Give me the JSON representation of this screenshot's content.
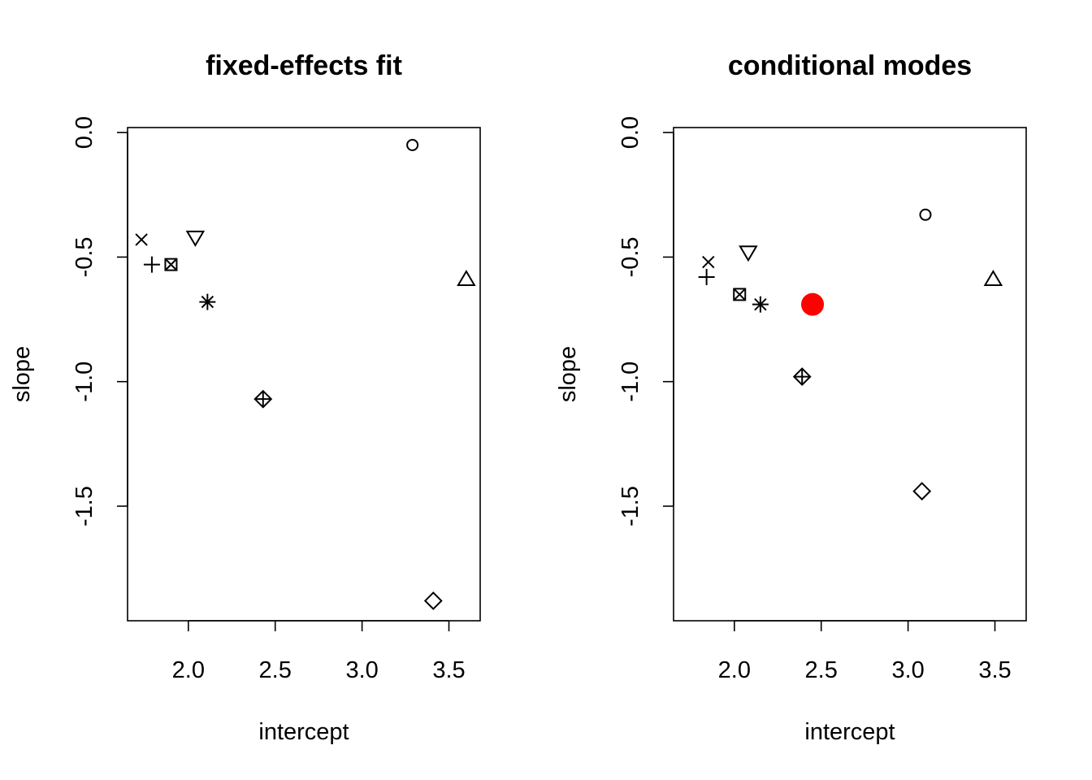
{
  "chart_data": [
    {
      "type": "scatter",
      "title": "fixed-effects fit",
      "xlabel": "intercept",
      "ylabel": "slope",
      "xlim": [
        1.65,
        3.68
      ],
      "ylim": [
        -1.96,
        0.02
      ],
      "xticks": [
        2.0,
        2.5,
        3.0,
        3.5
      ],
      "xtick_labels": [
        "2.0",
        "2.5",
        "3.0",
        "3.5"
      ],
      "yticks": [
        0.0,
        -0.5,
        -1.0,
        -1.5
      ],
      "ytick_labels": [
        "0.0",
        "-0.5",
        "-1.0",
        "-1.5"
      ],
      "grid": false,
      "points": [
        {
          "x": 3.29,
          "y": -0.05,
          "symbol": "circle",
          "color": "#000000"
        },
        {
          "x": 3.6,
          "y": -0.59,
          "symbol": "triangle-up",
          "color": "#000000"
        },
        {
          "x": 1.79,
          "y": -0.53,
          "symbol": "plus",
          "color": "#000000"
        },
        {
          "x": 1.73,
          "y": -0.43,
          "symbol": "cross",
          "color": "#000000"
        },
        {
          "x": 3.41,
          "y": -1.88,
          "symbol": "diamond",
          "color": "#000000"
        },
        {
          "x": 2.04,
          "y": -0.42,
          "symbol": "triangle-down",
          "color": "#000000"
        },
        {
          "x": 1.9,
          "y": -0.53,
          "symbol": "square-cross",
          "color": "#000000"
        },
        {
          "x": 2.11,
          "y": -0.68,
          "symbol": "asterisk",
          "color": "#000000"
        },
        {
          "x": 2.43,
          "y": -1.07,
          "symbol": "diamond-plus",
          "color": "#000000"
        }
      ]
    },
    {
      "type": "scatter",
      "title": "conditional modes",
      "xlabel": "intercept",
      "ylabel": "slope",
      "xlim": [
        1.65,
        3.68
      ],
      "ylim": [
        -1.96,
        0.02
      ],
      "xticks": [
        2.0,
        2.5,
        3.0,
        3.5
      ],
      "xtick_labels": [
        "2.0",
        "2.5",
        "3.0",
        "3.5"
      ],
      "yticks": [
        0.0,
        -0.5,
        -1.0,
        -1.5
      ],
      "ytick_labels": [
        "0.0",
        "-0.5",
        "-1.0",
        "-1.5"
      ],
      "grid": false,
      "points": [
        {
          "x": 3.1,
          "y": -0.33,
          "symbol": "circle",
          "color": "#000000"
        },
        {
          "x": 3.49,
          "y": -0.59,
          "symbol": "triangle-up",
          "color": "#000000"
        },
        {
          "x": 1.84,
          "y": -0.58,
          "symbol": "plus",
          "color": "#000000"
        },
        {
          "x": 1.85,
          "y": -0.52,
          "symbol": "cross",
          "color": "#000000"
        },
        {
          "x": 3.08,
          "y": -1.44,
          "symbol": "diamond",
          "color": "#000000"
        },
        {
          "x": 2.08,
          "y": -0.48,
          "symbol": "triangle-down",
          "color": "#000000"
        },
        {
          "x": 2.03,
          "y": -0.65,
          "symbol": "square-cross",
          "color": "#000000"
        },
        {
          "x": 2.15,
          "y": -0.69,
          "symbol": "asterisk",
          "color": "#000000"
        },
        {
          "x": 2.39,
          "y": -0.98,
          "symbol": "diamond-plus",
          "color": "#000000"
        },
        {
          "x": 2.45,
          "y": -0.69,
          "symbol": "filled-circle",
          "color": "#ff0000"
        }
      ]
    }
  ]
}
